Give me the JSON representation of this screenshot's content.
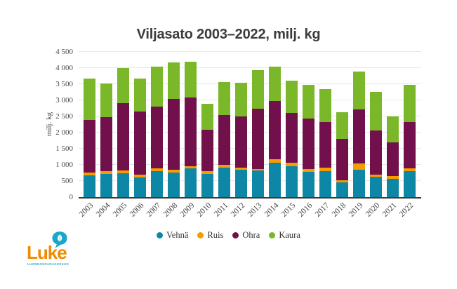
{
  "title": "Viljasato 2003–2022, milj. kg",
  "chart_data": {
    "type": "bar",
    "stacked": true,
    "title": "Viljasato 2003–2022, milj. kg",
    "xlabel": "",
    "ylabel": "milj. kg",
    "ylim": [
      0,
      4500
    ],
    "grid": true,
    "legend_position": "bottom",
    "categories": [
      "2003",
      "2004",
      "2005",
      "2006",
      "2007",
      "2008",
      "2009",
      "2010",
      "2011",
      "2012",
      "2013",
      "2014",
      "2015",
      "2016",
      "2017",
      "2018",
      "2019",
      "2020",
      "2021",
      "2022"
    ],
    "series": [
      {
        "name": "Vehnä",
        "color": "#0e86a5",
        "values": [
          670,
          720,
          745,
          615,
          795,
          765,
          890,
          725,
          910,
          840,
          830,
          1060,
          965,
          785,
          805,
          455,
          840,
          620,
          575,
          795
        ]
      },
      {
        "name": "Ruis",
        "color": "#f59c00",
        "values": [
          85,
          75,
          85,
          90,
          100,
          85,
          70,
          75,
          85,
          65,
          50,
          110,
          95,
          85,
          100,
          60,
          205,
          85,
          80,
          90
        ]
      },
      {
        "name": "Ohra",
        "color": "#72104b",
        "values": [
          1640,
          1680,
          2090,
          1950,
          1920,
          2200,
          2130,
          1290,
          1550,
          1585,
          1865,
          1805,
          1550,
          1560,
          1420,
          1285,
          1675,
          1360,
          1035,
          1435
        ]
      },
      {
        "name": "Kaura",
        "color": "#7ab829",
        "values": [
          1290,
          1050,
          1070,
          1020,
          1235,
          1130,
          1110,
          800,
          1010,
          1055,
          1195,
          1075,
          990,
          1040,
          1015,
          835,
          1175,
          1200,
          800,
          1160
        ]
      }
    ],
    "yticks": [
      {
        "value": 0,
        "label": "0"
      },
      {
        "value": 500,
        "label": "500"
      },
      {
        "value": 1000,
        "label": "1 000"
      },
      {
        "value": 1500,
        "label": "1 500"
      },
      {
        "value": 2000,
        "label": "2 000"
      },
      {
        "value": 2500,
        "label": "2 500"
      },
      {
        "value": 3000,
        "label": "3 000"
      },
      {
        "value": 3500,
        "label": "3 500"
      },
      {
        "value": 4000,
        "label": "4 000"
      },
      {
        "value": 4500,
        "label": "4 500"
      }
    ]
  },
  "colors": {
    "title_text": "#3c3c3c",
    "axis_text": "#4a4a4a",
    "gridline": "#e7e7e7",
    "axis_line": "#3b3b3b",
    "logo_orange": "#f08a00",
    "logo_teal": "#1ba7c9"
  },
  "logo": {
    "wordmark": "Luke",
    "subtitle": "LUONNONVARAKESKUS"
  }
}
